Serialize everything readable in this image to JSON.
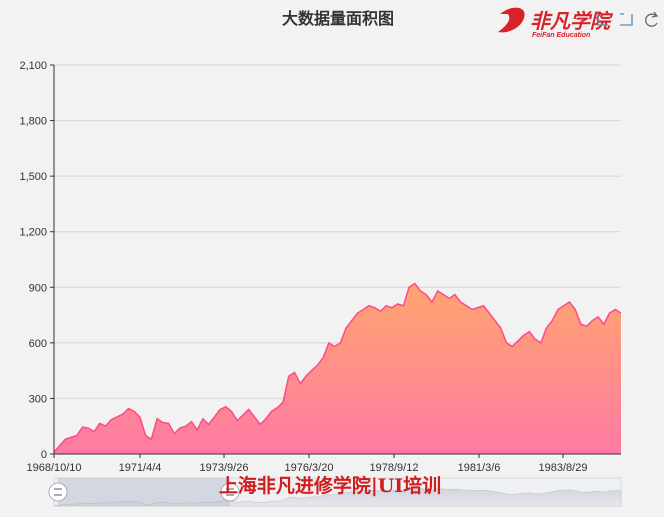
{
  "chart_data": {
    "type": "area",
    "title": "大数据量面积图",
    "xlabel": "",
    "ylabel": "",
    "ylim": [
      0,
      2100
    ],
    "yticks": [
      "0",
      "300",
      "600",
      "900",
      "1,200",
      "1,500",
      "1,800",
      "2,100"
    ],
    "xticks": [
      "1968/10/10",
      "1971/4/4",
      "1973/9/26",
      "1976/3/20",
      "1978/9/12",
      "1981/3/6",
      "1983/8/29"
    ],
    "x_range": [
      "1968/10/10",
      "1985/10/26"
    ],
    "grid": true,
    "fill_gradient": [
      "#ffa56e",
      "#ff7aa3"
    ],
    "line_color": "#ff4d8a",
    "series": [
      {
        "values": [
          [
            0,
            10
          ],
          [
            0.2,
            45
          ],
          [
            0.4,
            80
          ],
          [
            0.6,
            90
          ],
          [
            0.8,
            100
          ],
          [
            1.0,
            145
          ],
          [
            1.2,
            140
          ],
          [
            1.4,
            120
          ],
          [
            1.6,
            165
          ],
          [
            1.8,
            150
          ],
          [
            2.0,
            185
          ],
          [
            2.2,
            200
          ],
          [
            2.4,
            215
          ],
          [
            2.6,
            245
          ],
          [
            2.8,
            230
          ],
          [
            3.0,
            200
          ],
          [
            3.2,
            100
          ],
          [
            3.4,
            80
          ],
          [
            3.6,
            190
          ],
          [
            3.8,
            170
          ],
          [
            4.0,
            165
          ],
          [
            4.2,
            110
          ],
          [
            4.4,
            140
          ],
          [
            4.6,
            150
          ],
          [
            4.8,
            175
          ],
          [
            5.0,
            130
          ],
          [
            5.2,
            190
          ],
          [
            5.4,
            160
          ],
          [
            5.6,
            200
          ],
          [
            5.8,
            240
          ],
          [
            6.0,
            255
          ],
          [
            6.2,
            230
          ],
          [
            6.4,
            180
          ],
          [
            6.6,
            210
          ],
          [
            6.8,
            240
          ],
          [
            7.0,
            200
          ],
          [
            7.2,
            160
          ],
          [
            7.4,
            190
          ],
          [
            7.6,
            230
          ],
          [
            7.8,
            250
          ],
          [
            8.0,
            280
          ],
          [
            8.2,
            420
          ],
          [
            8.4,
            440
          ],
          [
            8.6,
            380
          ],
          [
            8.8,
            420
          ],
          [
            9.0,
            450
          ],
          [
            9.2,
            480
          ],
          [
            9.4,
            520
          ],
          [
            9.6,
            600
          ],
          [
            9.8,
            580
          ],
          [
            10.0,
            600
          ],
          [
            10.2,
            680
          ],
          [
            10.4,
            720
          ],
          [
            10.6,
            760
          ],
          [
            10.8,
            780
          ],
          [
            11.0,
            800
          ],
          [
            11.2,
            790
          ],
          [
            11.4,
            770
          ],
          [
            11.6,
            800
          ],
          [
            11.8,
            790
          ],
          [
            12.0,
            810
          ],
          [
            12.2,
            800
          ],
          [
            12.4,
            900
          ],
          [
            12.6,
            920
          ],
          [
            12.8,
            880
          ],
          [
            13.0,
            860
          ],
          [
            13.2,
            820
          ],
          [
            13.4,
            880
          ],
          [
            13.6,
            860
          ],
          [
            13.8,
            840
          ],
          [
            14.0,
            860
          ],
          [
            14.2,
            820
          ],
          [
            14.4,
            800
          ],
          [
            14.6,
            780
          ],
          [
            14.8,
            790
          ],
          [
            15.0,
            800
          ],
          [
            15.2,
            760
          ],
          [
            15.4,
            720
          ],
          [
            15.6,
            680
          ],
          [
            15.8,
            600
          ],
          [
            16.0,
            580
          ],
          [
            16.2,
            610
          ],
          [
            16.4,
            640
          ],
          [
            16.6,
            660
          ],
          [
            16.8,
            620
          ],
          [
            17.0,
            600
          ],
          [
            17.2,
            680
          ],
          [
            17.4,
            720
          ],
          [
            17.6,
            780
          ],
          [
            17.8,
            800
          ],
          [
            18.0,
            820
          ],
          [
            18.2,
            780
          ],
          [
            18.4,
            700
          ],
          [
            18.6,
            690
          ],
          [
            18.8,
            720
          ],
          [
            19.0,
            740
          ],
          [
            19.2,
            700
          ],
          [
            19.4,
            760
          ],
          [
            19.6,
            780
          ],
          [
            19.8,
            760
          ]
        ]
      }
    ]
  },
  "logo": {
    "brand": "非凡学院",
    "sub": "FeiFan Education"
  },
  "watermark": "上海非凡进修学院|UI培训",
  "toolbox": [
    "zoom-icon",
    "zoom-reset-icon",
    "restore-icon"
  ],
  "datazoom": {
    "start_percent": 0,
    "end_percent": 30
  }
}
